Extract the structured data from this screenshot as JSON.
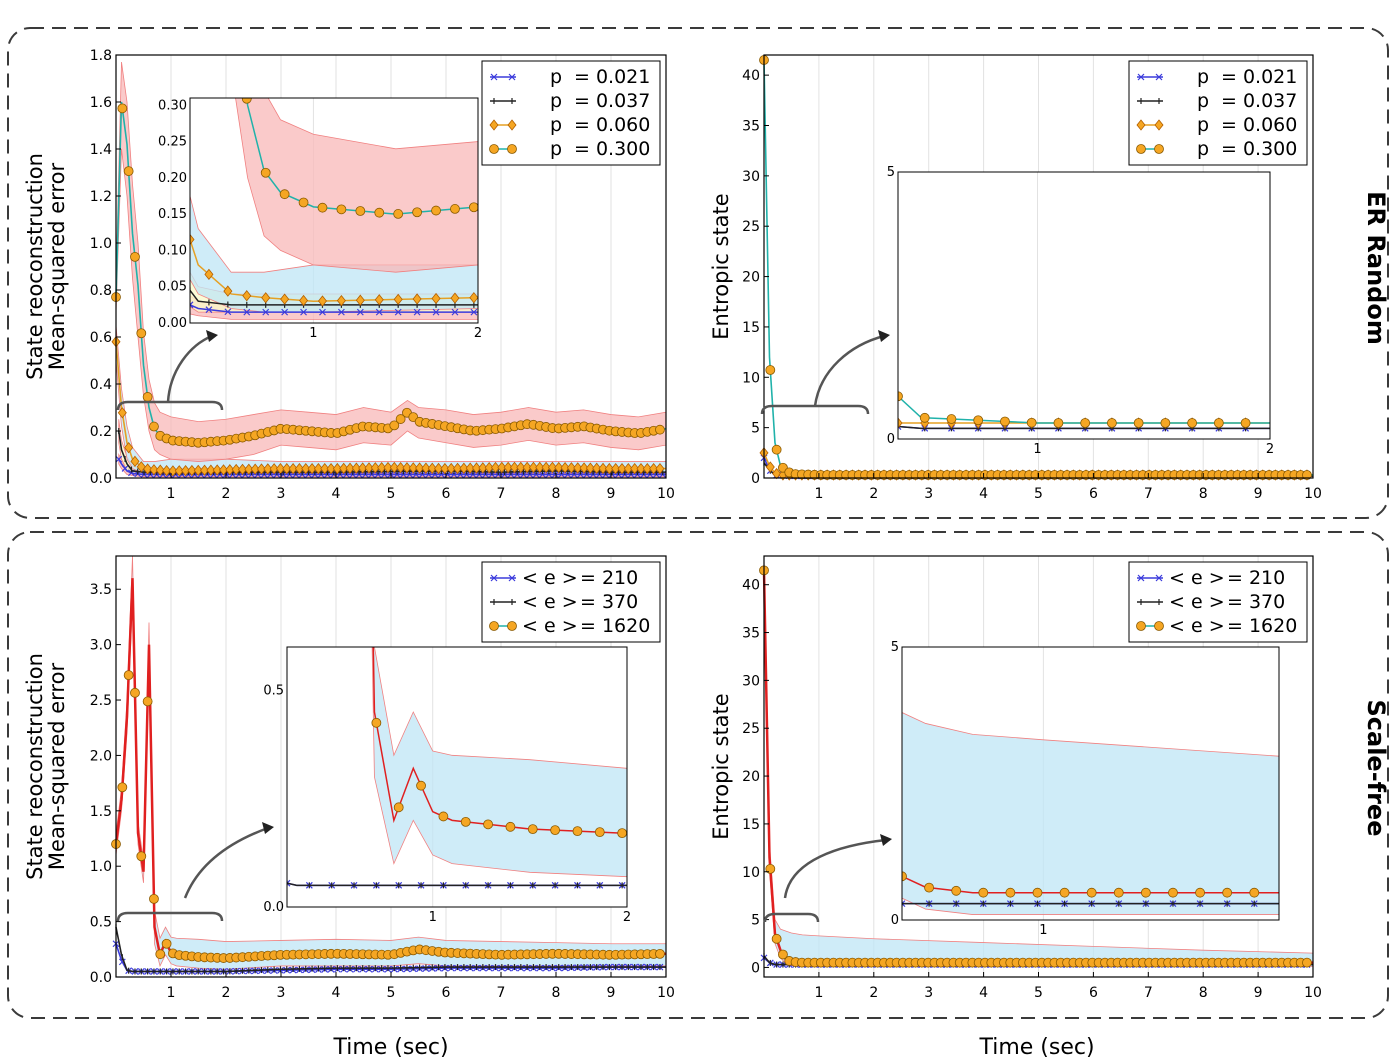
{
  "figure": {
    "rows": [
      "ER Random",
      "Scale-free"
    ],
    "xlabel": "Time (sec)"
  },
  "chart_data": [
    {
      "id": "er_mse",
      "type": "line",
      "row": "ER Random",
      "title": "",
      "ylabel_lines": [
        "State reoconstruction",
        "Mean-squared error"
      ],
      "xlim": [
        0,
        10
      ],
      "ylim": [
        0,
        1.8
      ],
      "xticks": [
        1,
        2,
        3,
        4,
        5,
        6,
        7,
        8,
        9,
        10
      ],
      "xtick_labels": [
        "1",
        "2",
        "3",
        "4",
        "5",
        "6",
        "7",
        "8",
        "9",
        "10"
      ],
      "yticks": [
        0,
        0.2,
        0.4,
        0.6,
        0.8,
        1.0,
        1.2,
        1.4,
        1.6,
        1.8
      ],
      "ytick_labels": [
        "0.0",
        "0.2",
        "0.4",
        "0.6",
        "0.8",
        "1.0",
        "1.2",
        "1.4",
        "1.6",
        "1.8"
      ],
      "legend": {
        "position": "top-right",
        "entries": [
          {
            "symbol": "p",
            "value": "= 0.021",
            "marker": "x",
            "color": "#3b3bdc"
          },
          {
            "symbol": "p",
            "value": "= 0.037",
            "marker": "plus",
            "color": "#222222"
          },
          {
            "symbol": "p",
            "value": "= 0.060",
            "marker": "diamond",
            "color": "#e5a024"
          },
          {
            "symbol": "p",
            "value": "= 0.300",
            "marker": "circle",
            "color": "#f0a20c"
          }
        ]
      },
      "series": [
        {
          "name": "p = 0.021",
          "color": "#3b3bdc",
          "band": "#f8b8b8",
          "x": [
            0.05,
            0.1,
            0.2,
            0.3,
            0.5,
            1,
            2,
            3,
            4,
            5,
            6,
            7,
            8,
            9,
            10
          ],
          "values": [
            0.08,
            0.06,
            0.03,
            0.02,
            0.015,
            0.015,
            0.015,
            0.015,
            0.015,
            0.015,
            0.015,
            0.015,
            0.015,
            0.015,
            0.015
          ],
          "lower": [
            0.06,
            0.04,
            0.015,
            0.01,
            0.005,
            0.005,
            0.005,
            0.005,
            0.005,
            0.005,
            0.005,
            0.005,
            0.005,
            0.005,
            0.005
          ],
          "upper": [
            0.1,
            0.08,
            0.045,
            0.03,
            0.025,
            0.025,
            0.025,
            0.025,
            0.025,
            0.025,
            0.025,
            0.025,
            0.025,
            0.025,
            0.025
          ]
        },
        {
          "name": "p = 0.037",
          "color": "#222222",
          "band": "#fafac8",
          "x": [
            0.05,
            0.1,
            0.2,
            0.3,
            0.5,
            1,
            2,
            3,
            4,
            5,
            6,
            7,
            8,
            9,
            10
          ],
          "values": [
            0.2,
            0.12,
            0.06,
            0.03,
            0.025,
            0.025,
            0.025,
            0.025,
            0.025,
            0.028,
            0.03,
            0.025,
            0.03,
            0.025,
            0.025
          ],
          "lower": [
            0.15,
            0.08,
            0.03,
            0.015,
            0.015,
            0.015,
            0.015,
            0.015,
            0.015,
            0.015,
            0.015,
            0.015,
            0.015,
            0.015,
            0.015
          ],
          "upper": [
            0.25,
            0.16,
            0.09,
            0.05,
            0.04,
            0.04,
            0.04,
            0.04,
            0.04,
            0.04,
            0.045,
            0.04,
            0.045,
            0.04,
            0.04
          ]
        },
        {
          "name": "p = 0.060",
          "color": "#e5a024",
          "band": "#bfe6f5",
          "x": [
            0,
            0.1,
            0.2,
            0.3,
            0.5,
            0.7,
            1,
            2,
            3,
            4,
            5,
            6,
            7,
            8,
            9,
            10
          ],
          "values": [
            0.58,
            0.3,
            0.15,
            0.08,
            0.04,
            0.035,
            0.03,
            0.035,
            0.04,
            0.04,
            0.045,
            0.04,
            0.045,
            0.045,
            0.04,
            0.04
          ],
          "lower": [
            0.5,
            0.22,
            0.08,
            0.04,
            0.02,
            0.015,
            0.015,
            0.02,
            0.02,
            0.02,
            0.02,
            0.02,
            0.02,
            0.02,
            0.02,
            0.02
          ],
          "upper": [
            0.65,
            0.38,
            0.22,
            0.13,
            0.07,
            0.07,
            0.08,
            0.08,
            0.07,
            0.07,
            0.07,
            0.07,
            0.07,
            0.07,
            0.07,
            0.07
          ]
        },
        {
          "name": "p = 0.300",
          "color": "#20b2aa",
          "band": "#f8b8b8",
          "x": [
            0,
            0.1,
            0.2,
            0.3,
            0.4,
            0.5,
            0.6,
            0.7,
            0.8,
            1,
            1.5,
            2,
            2.5,
            3,
            3.5,
            4,
            4.5,
            5,
            5.3,
            5.5,
            6,
            6.5,
            7,
            7.5,
            8,
            8.5,
            9,
            9.5,
            10
          ],
          "values": [
            0.77,
            1.6,
            1.42,
            1.04,
            0.82,
            0.48,
            0.3,
            0.21,
            0.18,
            0.16,
            0.15,
            0.16,
            0.18,
            0.21,
            0.2,
            0.19,
            0.22,
            0.21,
            0.28,
            0.24,
            0.22,
            0.2,
            0.21,
            0.23,
            0.21,
            0.22,
            0.2,
            0.19,
            0.21
          ],
          "lower": [
            0.7,
            1.4,
            1.2,
            0.85,
            0.6,
            0.35,
            0.2,
            0.12,
            0.1,
            0.08,
            0.07,
            0.08,
            0.1,
            0.14,
            0.13,
            0.12,
            0.15,
            0.14,
            0.2,
            0.17,
            0.15,
            0.13,
            0.14,
            0.16,
            0.14,
            0.15,
            0.13,
            0.12,
            0.14
          ],
          "upper": [
            0.85,
            1.77,
            1.6,
            1.25,
            1.0,
            0.62,
            0.42,
            0.32,
            0.28,
            0.26,
            0.24,
            0.25,
            0.27,
            0.29,
            0.28,
            0.27,
            0.3,
            0.28,
            0.33,
            0.3,
            0.29,
            0.27,
            0.28,
            0.3,
            0.28,
            0.29,
            0.27,
            0.26,
            0.28
          ]
        }
      ],
      "inset": {
        "xlim": [
          0.25,
          2
        ],
        "ylim": [
          0,
          0.31
        ],
        "xtick_labels": [
          "1",
          "2"
        ],
        "ytick_labels": [
          "0.00",
          "0.05",
          "0.10",
          "0.15",
          "0.20",
          "0.25",
          "0.30"
        ]
      }
    },
    {
      "id": "er_entropy",
      "type": "line",
      "row": "ER Random",
      "ylabel_lines": [
        "Entropic state"
      ],
      "xlim": [
        0,
        10
      ],
      "ylim": [
        0,
        42
      ],
      "xticks": [
        1,
        2,
        3,
        4,
        5,
        6,
        7,
        8,
        9,
        10
      ],
      "xtick_labels": [
        "1",
        "2",
        "3",
        "4",
        "5",
        "6",
        "7",
        "8",
        "9",
        "10"
      ],
      "yticks": [
        0,
        5,
        10,
        15,
        20,
        25,
        30,
        35,
        40
      ],
      "ytick_labels": [
        "0",
        "5",
        "10",
        "15",
        "20",
        "25",
        "30",
        "35",
        "40"
      ],
      "legend": {
        "position": "top-right",
        "entries": [
          {
            "symbol": "p",
            "value": "= 0.021",
            "marker": "x",
            "color": "#3b3bdc"
          },
          {
            "symbol": "p",
            "value": "= 0.037",
            "marker": "plus",
            "color": "#222222"
          },
          {
            "symbol": "p",
            "value": "= 0.060",
            "marker": "diamond",
            "color": "#e5a024"
          },
          {
            "symbol": "p",
            "value": "= 0.300",
            "marker": "circle",
            "color": "#f0a20c"
          }
        ]
      },
      "series": [
        {
          "name": "p = 0.021",
          "color": "#3b3bdc",
          "x": [
            0,
            0.1,
            0.2,
            0.5,
            1,
            10
          ],
          "values": [
            2,
            0.8,
            0.3,
            0.2,
            0.2,
            0.2
          ]
        },
        {
          "name": "p = 0.037",
          "color": "#222222",
          "x": [
            0,
            0.1,
            0.2,
            0.5,
            1,
            10
          ],
          "values": [
            1.5,
            0.8,
            0.3,
            0.2,
            0.2,
            0.2
          ]
        },
        {
          "name": "p = 0.060",
          "color": "#e5a024",
          "x": [
            0,
            0.1,
            0.2,
            0.3,
            0.5,
            1,
            10
          ],
          "values": [
            2.5,
            1.2,
            0.5,
            0.3,
            0.3,
            0.3,
            0.3
          ]
        },
        {
          "name": "p = 0.300",
          "color": "#20b2aa",
          "x": [
            0,
            0.1,
            0.2,
            0.3,
            0.5,
            1,
            10
          ],
          "values": [
            41.5,
            12,
            3.5,
            1.2,
            0.4,
            0.3,
            0.3
          ]
        }
      ],
      "inset": {
        "xlim": [
          0.4,
          2
        ],
        "ylim": [
          0,
          5
        ],
        "xtick_labels": [
          "1",
          "2"
        ],
        "ytick_labels": [
          "0",
          "5"
        ]
      }
    },
    {
      "id": "sf_mse",
      "type": "line",
      "row": "Scale-free",
      "ylabel_lines": [
        "State reoconstruction",
        "Mean-squared error"
      ],
      "xlim": [
        0,
        10
      ],
      "ylim": [
        0,
        3.8
      ],
      "xticks": [
        1,
        2,
        3,
        4,
        5,
        6,
        7,
        8,
        9,
        10
      ],
      "xtick_labels": [
        "1",
        "2",
        "3",
        "4",
        "5",
        "6",
        "7",
        "8",
        "9",
        "10"
      ],
      "yticks": [
        0,
        0.5,
        1.0,
        1.5,
        2.0,
        2.5,
        3.0,
        3.5
      ],
      "ytick_labels": [
        "0.0",
        "0.5",
        "1.0",
        "1.5",
        "2.0",
        "2.5",
        "3.0",
        "3.5"
      ],
      "legend": {
        "position": "top-right",
        "entries": [
          {
            "symbol": "< e >",
            "value": "= 210",
            "marker": "x",
            "color": "#3b3bdc"
          },
          {
            "symbol": "< e >",
            "value": "= 370",
            "marker": "plus",
            "color": "#222222"
          },
          {
            "symbol": "< e >",
            "value": "= 1620",
            "marker": "circle",
            "color": "#f0a20c"
          }
        ]
      },
      "series": [
        {
          "name": "< e > = 210",
          "color": "#3b3bdc",
          "x": [
            0,
            0.1,
            0.2,
            0.3,
            0.5,
            1,
            2,
            3,
            4,
            5,
            6,
            7,
            8,
            9,
            10
          ],
          "values": [
            0.3,
            0.15,
            0.06,
            0.05,
            0.05,
            0.05,
            0.05,
            0.06,
            0.07,
            0.07,
            0.08,
            0.08,
            0.08,
            0.09,
            0.09
          ]
        },
        {
          "name": "< e > = 370",
          "color": "#222222",
          "x": [
            0,
            0.1,
            0.2,
            0.3,
            0.5,
            1,
            2,
            3,
            4,
            5,
            6,
            7,
            8,
            9,
            10
          ],
          "values": [
            0.45,
            0.2,
            0.06,
            0.05,
            0.05,
            0.05,
            0.05,
            0.07,
            0.08,
            0.08,
            0.09,
            0.09,
            0.09,
            0.09,
            0.09
          ]
        },
        {
          "name": "< e > = 1620",
          "color": "#e02020",
          "band": "#bfe6f5",
          "x": [
            0,
            0.1,
            0.2,
            0.3,
            0.4,
            0.5,
            0.6,
            0.7,
            0.8,
            0.9,
            1,
            1.1,
            1.5,
            2,
            3,
            4,
            5,
            5.5,
            6,
            7,
            8,
            9,
            10
          ],
          "values": [
            1.2,
            1.6,
            2.35,
            3.6,
            1.3,
            0.95,
            3.0,
            0.45,
            0.2,
            0.32,
            0.22,
            0.2,
            0.18,
            0.17,
            0.2,
            0.21,
            0.2,
            0.25,
            0.22,
            0.2,
            0.21,
            0.2,
            0.21
          ],
          "lower": [
            1.1,
            1.5,
            2.2,
            3.4,
            1.2,
            0.85,
            2.8,
            0.3,
            0.1,
            0.2,
            0.12,
            0.1,
            0.08,
            0.07,
            0.1,
            0.1,
            0.1,
            0.12,
            0.1,
            0.1,
            0.1,
            0.1,
            0.1
          ],
          "upper": [
            1.3,
            1.7,
            2.5,
            3.8,
            1.4,
            1.05,
            3.2,
            0.6,
            0.35,
            0.45,
            0.36,
            0.35,
            0.34,
            0.32,
            0.33,
            0.34,
            0.33,
            0.36,
            0.33,
            0.32,
            0.31,
            0.3,
            0.3
          ]
        }
      ],
      "inset": {
        "xlim": [
          0.25,
          2
        ],
        "ylim": [
          0,
          0.6
        ],
        "xtick_labels": [
          "1",
          "2"
        ],
        "ytick_labels": [
          "0.0",
          "0.5"
        ]
      }
    },
    {
      "id": "sf_entropy",
      "type": "line",
      "row": "Scale-free",
      "ylabel_lines": [
        "Entropic state"
      ],
      "xlim": [
        0,
        10
      ],
      "ylim": [
        -1,
        43
      ],
      "xticks": [
        1,
        2,
        3,
        4,
        5,
        6,
        7,
        8,
        9,
        10
      ],
      "xtick_labels": [
        "1",
        "2",
        "3",
        "4",
        "5",
        "6",
        "7",
        "8",
        "9",
        "10"
      ],
      "yticks": [
        0,
        5,
        10,
        15,
        20,
        25,
        30,
        35,
        40
      ],
      "ytick_labels": [
        "0",
        "5",
        "10",
        "15",
        "20",
        "25",
        "30",
        "35",
        "40"
      ],
      "legend": {
        "position": "top-right",
        "entries": [
          {
            "symbol": "< e >",
            "value": "= 210",
            "marker": "x",
            "color": "#3b3bdc"
          },
          {
            "symbol": "< e >",
            "value": "= 370",
            "marker": "plus",
            "color": "#222222"
          },
          {
            "symbol": "< e >",
            "value": "= 1620",
            "marker": "circle",
            "color": "#f0a20c"
          }
        ]
      },
      "series": [
        {
          "name": "< e > = 210",
          "color": "#3b3bdc",
          "x": [
            0,
            0.1,
            0.2,
            0.5,
            1,
            10
          ],
          "values": [
            1,
            0.5,
            0.3,
            0.3,
            0.3,
            0.3
          ]
        },
        {
          "name": "< e > = 370",
          "color": "#222222",
          "x": [
            0,
            0.1,
            0.2,
            0.5,
            1,
            10
          ],
          "values": [
            1.2,
            0.5,
            0.3,
            0.3,
            0.3,
            0.3
          ]
        },
        {
          "name": "< e > = 1620",
          "color": "#e02020",
          "band": "#bfe6f5",
          "x": [
            0,
            0.1,
            0.2,
            0.3,
            0.4,
            0.5,
            0.7,
            1,
            2,
            4,
            6,
            8,
            10
          ],
          "values": [
            41.5,
            11.5,
            3.5,
            1.8,
            0.8,
            0.6,
            0.5,
            0.5,
            0.5,
            0.5,
            0.5,
            0.5,
            0.5
          ],
          "lower": [
            40,
            10,
            2.5,
            1,
            0.4,
            0.2,
            0.1,
            0.1,
            0.1,
            0.1,
            0.1,
            0.1,
            0.1
          ],
          "upper": [
            43,
            13,
            5,
            4,
            3.8,
            3.6,
            3.4,
            3.3,
            3.0,
            2.6,
            2.2,
            1.8,
            1.5
          ]
        }
      ],
      "inset": {
        "xlim": [
          0.4,
          2
        ],
        "ylim": [
          0,
          5
        ],
        "xtick_labels": [
          "1"
        ],
        "ytick_labels": [
          "0",
          "5"
        ]
      }
    }
  ]
}
